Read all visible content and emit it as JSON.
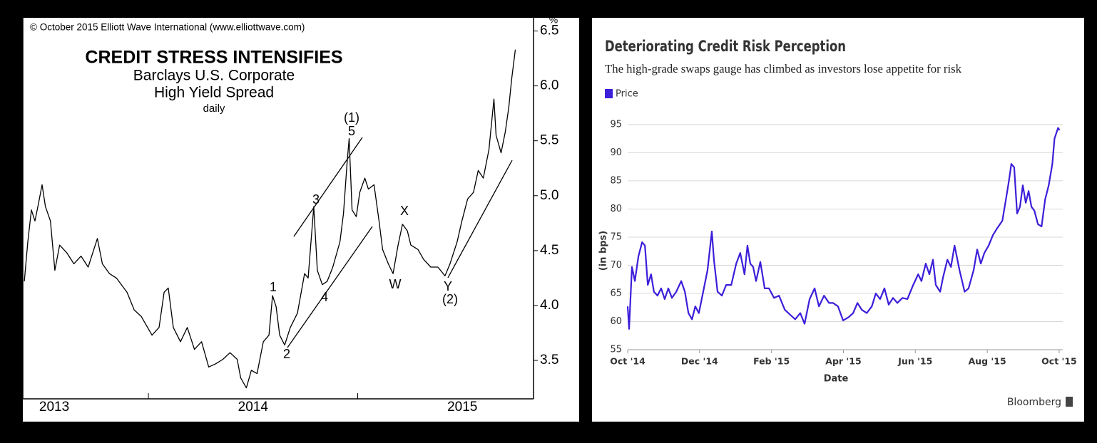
{
  "chart_data": [
    {
      "type": "line",
      "copyright": "© October 2015 Elliott Wave International (www.elliottwave.com)",
      "title": "CREDIT STRESS INTENSIFIES",
      "subtitle": [
        "Barclays U.S. Corporate",
        "High Yield Spread",
        "daily"
      ],
      "y_unit": "%",
      "color": "#000000",
      "x": [
        2013.407,
        2013.424,
        2013.441,
        2013.458,
        2013.475,
        2013.492,
        2013.508,
        2013.532,
        2013.553,
        2013.576,
        2013.61,
        2013.644,
        2013.678,
        2013.712,
        2013.756,
        2013.78,
        2013.814,
        2013.847,
        2013.898,
        2013.932,
        2013.966,
        2014.017,
        2014.051,
        2014.075,
        2014.095,
        2014.119,
        2014.153,
        2014.186,
        2014.22,
        2014.254,
        2014.288,
        2014.322,
        2014.356,
        2014.39,
        2014.424,
        2014.441,
        2014.468,
        2014.492,
        2014.519,
        2014.549,
        2014.576,
        2014.593,
        2014.61,
        2014.627,
        2014.651,
        2014.678,
        2014.712,
        2014.746,
        2014.763,
        2014.79,
        2014.807,
        2014.831,
        2014.854,
        2014.881,
        2014.915,
        2014.932,
        2014.949,
        2014.959,
        2014.973,
        2014.993,
        2015.01,
        2015.034,
        2015.051,
        2015.078,
        2015.102,
        2015.119,
        2015.146,
        2015.169,
        2015.193,
        2015.214,
        2015.237,
        2015.254,
        2015.288,
        2015.315,
        2015.349,
        2015.383,
        2015.417,
        2015.441,
        2015.475,
        2015.498,
        2015.525,
        2015.553,
        2015.576,
        2015.6,
        2015.627,
        2015.651,
        2015.661,
        2015.685,
        2015.705,
        2015.722,
        2015.736,
        2015.753
      ],
      "values": [
        4.22,
        4.58,
        4.87,
        4.77,
        4.93,
        5.1,
        4.9,
        4.77,
        4.32,
        4.55,
        4.48,
        4.38,
        4.45,
        4.35,
        4.61,
        4.38,
        4.29,
        4.25,
        4.12,
        3.96,
        3.9,
        3.73,
        3.8,
        4.12,
        4.16,
        3.8,
        3.67,
        3.8,
        3.6,
        3.67,
        3.44,
        3.47,
        3.51,
        3.57,
        3.51,
        3.34,
        3.25,
        3.41,
        3.38,
        3.67,
        3.73,
        4.09,
        3.99,
        3.73,
        3.64,
        3.8,
        3.93,
        4.29,
        4.25,
        4.9,
        4.32,
        4.19,
        4.22,
        4.35,
        4.58,
        4.84,
        5.29,
        5.52,
        4.87,
        4.81,
        5.03,
        5.16,
        5.06,
        5.1,
        4.77,
        4.51,
        4.38,
        4.29,
        4.55,
        4.74,
        4.68,
        4.55,
        4.51,
        4.42,
        4.35,
        4.35,
        4.27,
        4.38,
        4.58,
        4.77,
        4.97,
        5.03,
        5.23,
        5.16,
        5.42,
        5.88,
        5.55,
        5.39,
        5.58,
        5.81,
        6.07,
        6.33
      ],
      "xlim": [
        2013.4,
        2015.84
      ],
      "xticks": [
        {
          "value": 2013.55,
          "label": "2013"
        },
        {
          "value": 2014.5,
          "label": "2014"
        },
        {
          "value": 2015.5,
          "label": "2015"
        }
      ],
      "xminorticks": [
        2014,
        2015
      ],
      "ylim": [
        3.15,
        6.62
      ],
      "yticks": [
        3.5,
        {
          "value": 4,
          "label": "4.0"
        },
        4.5,
        {
          "value": 5,
          "label": "5.0"
        },
        5.5,
        {
          "value": 6,
          "label": "6.0"
        },
        6.5
      ],
      "grid": false,
      "annotations": [
        "(1)",
        "5",
        "3",
        "1",
        "2",
        "4",
        "W",
        "X",
        "Y",
        "(2)"
      ]
    },
    {
      "type": "line",
      "title": "Deteriorating Credit Risk Perception",
      "subtitle": "The high-grade swaps gauge has climbed as investors lose appetite for risk",
      "ylabel": "(in bps)",
      "xlabel": "Date",
      "source": "Bloomberg",
      "x": [
        0,
        0.04,
        0.12,
        0.2,
        0.3,
        0.4,
        0.48,
        0.56,
        0.65,
        0.73,
        0.83,
        0.93,
        1.03,
        1.13,
        1.23,
        1.35,
        1.49,
        1.59,
        1.69,
        1.79,
        1.88,
        1.98,
        2.1,
        2.22,
        2.34,
        2.4,
        2.5,
        2.62,
        2.74,
        2.88,
        3.02,
        3.13,
        3.25,
        3.33,
        3.41,
        3.49,
        3.57,
        3.69,
        3.81,
        3.93,
        4.07,
        4.21,
        4.37,
        4.52,
        4.66,
        4.8,
        4.92,
        5.06,
        5.2,
        5.32,
        5.46,
        5.6,
        5.71,
        5.85,
        5.99,
        6.15,
        6.27,
        6.39,
        6.51,
        6.65,
        6.79,
        6.9,
        7.02,
        7.14,
        7.26,
        7.38,
        7.5,
        7.64,
        7.78,
        7.94,
        8.08,
        8.17,
        8.29,
        8.39,
        8.49,
        8.57,
        8.69,
        8.77,
        8.89,
        8.99,
        9.09,
        9.23,
        9.37,
        9.48,
        9.62,
        9.72,
        9.82,
        9.92,
        10.04,
        10.16,
        10.28,
        10.42,
        10.52,
        10.6,
        10.67,
        10.75,
        10.83,
        10.91,
        10.99,
        11.07,
        11.15,
        11.23,
        11.31,
        11.41,
        11.51,
        11.61,
        11.71,
        11.81,
        11.87,
        11.97,
        12.01
      ],
      "series": [
        {
          "name": "Price",
          "color": "#3b1fd9",
          "values": [
            62.7,
            58.7,
            69.7,
            67.2,
            71.6,
            74.1,
            73.5,
            66.5,
            68.4,
            65.3,
            64.6,
            65.9,
            64.0,
            65.9,
            64.2,
            65.3,
            67.2,
            65.3,
            61.5,
            60.4,
            62.7,
            61.5,
            65.3,
            69.1,
            76.0,
            70.9,
            65.3,
            64.6,
            66.5,
            66.5,
            70.3,
            72.2,
            68.4,
            73.5,
            70.3,
            69.7,
            67.2,
            70.6,
            65.9,
            65.9,
            64.2,
            64.6,
            62.1,
            61.2,
            60.4,
            61.5,
            59.6,
            64.0,
            65.9,
            62.7,
            64.6,
            63.3,
            63.3,
            62.7,
            60.2,
            60.8,
            61.5,
            63.3,
            62.1,
            61.5,
            62.7,
            65.0,
            64.0,
            65.9,
            63.0,
            64.2,
            63.3,
            64.2,
            64.0,
            66.5,
            68.4,
            67.2,
            70.3,
            68.4,
            71.0,
            66.5,
            65.3,
            67.8,
            71.0,
            69.7,
            73.5,
            69.1,
            65.3,
            65.9,
            69.1,
            72.8,
            70.3,
            72.2,
            73.5,
            75.4,
            76.6,
            77.9,
            81.7,
            84.9,
            88.0,
            87.4,
            79.2,
            80.4,
            84.2,
            81.1,
            83.2,
            80.4,
            79.7,
            77.3,
            76.9,
            81.7,
            84.2,
            88.0,
            92.5,
            94.4,
            94.0
          ]
        }
      ],
      "xlim": [
        0,
        12.1
      ],
      "xticks": [
        {
          "value": 0,
          "label": "Oct '14"
        },
        {
          "value": 2,
          "label": "Dec '14"
        },
        {
          "value": 4,
          "label": "Feb '15"
        },
        {
          "value": 6,
          "label": "Apr '15"
        },
        {
          "value": 8,
          "label": "Jun '15"
        },
        {
          "value": 10,
          "label": "Aug '15"
        },
        {
          "value": 12,
          "label": "Oct '15"
        }
      ],
      "ylim": [
        55,
        96
      ],
      "yticks": [
        55,
        60,
        65,
        70,
        75,
        80,
        85,
        90,
        95
      ],
      "grid": true
    }
  ]
}
